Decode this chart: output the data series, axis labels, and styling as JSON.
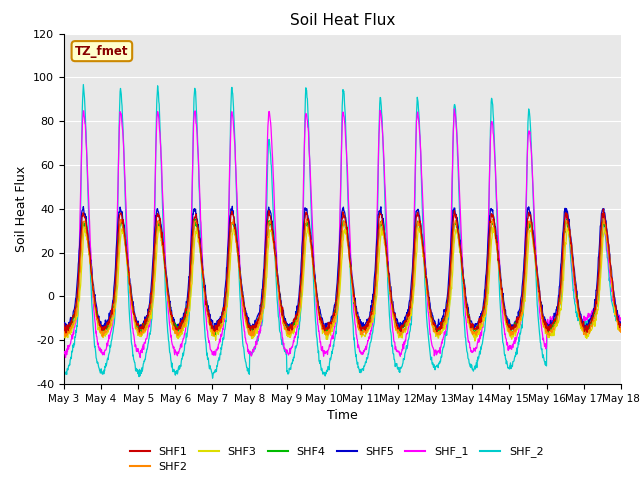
{
  "title": "Soil Heat Flux",
  "xlabel": "Time",
  "ylabel": "Soil Heat Flux",
  "ylim": [
    -40,
    120
  ],
  "xlim": [
    0,
    15
  ],
  "series_colors": {
    "SHF1": "#cc0000",
    "SHF2": "#ff8800",
    "SHF3": "#dddd00",
    "SHF4": "#00bb00",
    "SHF5": "#0000cc",
    "SHF_1": "#ff00ff",
    "SHF_2": "#00cccc"
  },
  "xtick_labels": [
    "May 3",
    "May 4",
    "May 5",
    "May 6",
    "May 7",
    "May 8",
    "May 9",
    "May 10",
    "May 11",
    "May 12",
    "May 13",
    "May 14",
    "May 15",
    "May 16",
    "May 17",
    "May 18"
  ],
  "annotation_text": "TZ_fmet",
  "annotation_bg": "#ffffcc",
  "annotation_border": "#cc8800",
  "background_color": "#e8e8e8",
  "yticks": [
    -40,
    -20,
    0,
    20,
    40,
    60,
    80,
    100,
    120
  ]
}
